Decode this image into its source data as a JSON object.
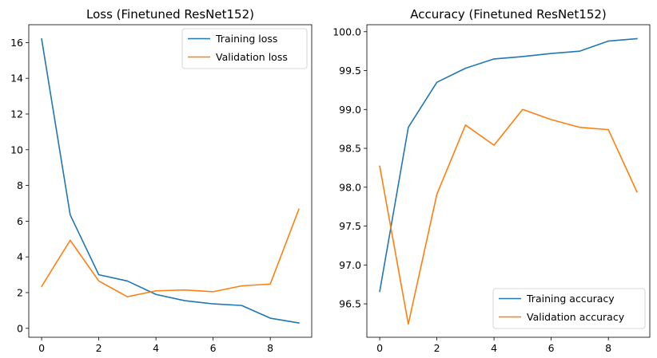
{
  "chart_data": [
    {
      "type": "line",
      "title": "Loss (Finetuned ResNet152)",
      "xlabel": "",
      "ylabel": "",
      "x": [
        0,
        1,
        2,
        3,
        4,
        5,
        6,
        7,
        8,
        9
      ],
      "xlim": [
        -0.45,
        9.45
      ],
      "ylim": [
        -0.5,
        17.0
      ],
      "xticks": [
        0,
        2,
        4,
        6,
        8
      ],
      "yticks": [
        0,
        2,
        4,
        6,
        8,
        10,
        12,
        14,
        16
      ],
      "legend_position": "upper right",
      "grid": false,
      "series": [
        {
          "name": "Training loss",
          "color": "#1f77b4",
          "values": [
            16.2,
            6.35,
            3.0,
            2.65,
            1.9,
            1.55,
            1.37,
            1.28,
            0.57,
            0.3
          ]
        },
        {
          "name": "Validation loss",
          "color": "#ff7f0e",
          "values": [
            2.35,
            4.93,
            2.65,
            1.77,
            2.1,
            2.15,
            2.05,
            2.38,
            2.48,
            6.67
          ]
        }
      ]
    },
    {
      "type": "line",
      "title": "Accuracy (Finetuned ResNet152)",
      "xlabel": "",
      "ylabel": "",
      "x": [
        0,
        1,
        2,
        3,
        4,
        5,
        6,
        7,
        8,
        9
      ],
      "xlim": [
        -0.45,
        9.45
      ],
      "ylim": [
        96.07,
        100.09
      ],
      "xticks": [
        0,
        2,
        4,
        6,
        8
      ],
      "yticks": [
        96.5,
        97.0,
        97.5,
        98.0,
        98.5,
        99.0,
        99.5,
        100.0
      ],
      "ytick_labels": [
        "96.5",
        "97.0",
        "97.5",
        "98.0",
        "98.5",
        "99.0",
        "99.5",
        "100.0"
      ],
      "legend_position": "lower right",
      "grid": false,
      "series": [
        {
          "name": "Training accuracy",
          "color": "#1f77b4",
          "values": [
            96.66,
            98.77,
            99.35,
            99.53,
            99.65,
            99.68,
            99.72,
            99.75,
            99.88,
            99.91
          ]
        },
        {
          "name": "Validation accuracy",
          "color": "#ff7f0e",
          "values": [
            98.27,
            96.24,
            97.91,
            98.8,
            98.54,
            99.0,
            98.87,
            98.77,
            98.74,
            97.94
          ]
        }
      ]
    }
  ]
}
